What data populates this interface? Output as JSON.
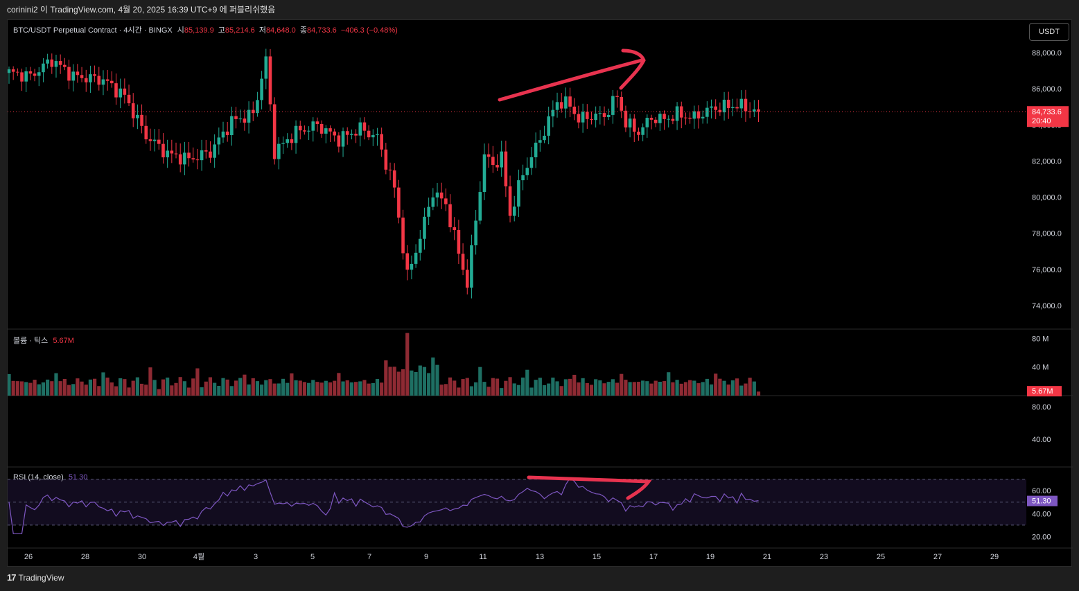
{
  "header": {
    "publish_line": "corinini2 이 TradingView.com, 4월 20, 2025 16:39 UTC+9 에 퍼블리쉬했음"
  },
  "legend": {
    "symbol": "BTC/USDT Perpetual Contract · 4시간 · BINGX",
    "o_label": "시",
    "o_value": "85,139.9",
    "h_label": "고",
    "h_value": "85,214.6",
    "l_label": "저",
    "l_value": "84,648.0",
    "c_label": "종",
    "c_value": "84,733.6",
    "change": "−406.3 (−0.48%)"
  },
  "currency_button": "USDT",
  "price_tag": {
    "price": "84,733.6",
    "countdown": "20:40"
  },
  "volume": {
    "label": "볼륨 · 틱스",
    "value": "5.67M",
    "tag": "5.67M"
  },
  "rsi": {
    "label": "RSI (14, close)",
    "value": "51.30",
    "tag": "51.30"
  },
  "footer": {
    "brand": "TradingView",
    "logo": "17"
  },
  "colors": {
    "up": "#22ab94",
    "down": "#f23645",
    "rsi": "#7e57c2",
    "annotation": "#e8334f"
  },
  "chart_data": {
    "type": "candlestick",
    "price_axis": {
      "ticks": [
        "88,000.0",
        "86,000.0",
        "84,000.0",
        "82,000.0",
        "80,000.0",
        "78,000.0",
        "76,000.0",
        "74,000.0"
      ],
      "ylim": [
        73000,
        89500
      ]
    },
    "volume_axis": {
      "ticks": [
        "80 M",
        "40 M"
      ],
      "ylim": [
        0,
        88
      ]
    },
    "oscillator_axis": {
      "ticks": [
        "80.00",
        "40.00"
      ]
    },
    "rsi_axis": {
      "ticks": [
        "60.00",
        "40.00",
        "20.00"
      ],
      "ylim": [
        10,
        80
      ],
      "bands": [
        70,
        50,
        30
      ]
    },
    "x_ticks": [
      "26",
      "28",
      "30",
      "4월",
      "3",
      "5",
      "7",
      "9",
      "11",
      "13",
      "15",
      "17",
      "19",
      "21",
      "23",
      "25",
      "27",
      "29"
    ],
    "close_anchors": [
      [
        0,
        86900
      ],
      [
        5,
        86700
      ],
      [
        10,
        87600
      ],
      [
        15,
        86700
      ],
      [
        22,
        86500
      ],
      [
        27,
        85600
      ],
      [
        32,
        83400
      ],
      [
        37,
        82400
      ],
      [
        42,
        82100
      ],
      [
        47,
        82500
      ],
      [
        52,
        84200
      ],
      [
        57,
        84600
      ],
      [
        60,
        87600
      ],
      [
        62,
        82500
      ],
      [
        67,
        83600
      ],
      [
        72,
        84000
      ],
      [
        77,
        83200
      ],
      [
        82,
        83800
      ],
      [
        86,
        83300
      ],
      [
        90,
        80500
      ],
      [
        93,
        75600
      ],
      [
        96,
        77800
      ],
      [
        99,
        80300
      ],
      [
        102,
        79600
      ],
      [
        105,
        76900
      ],
      [
        107,
        75200
      ],
      [
        111,
        82300
      ],
      [
        113,
        81800
      ],
      [
        115,
        82200
      ],
      [
        117,
        79000
      ],
      [
        120,
        81300
      ],
      [
        125,
        83700
      ],
      [
        128,
        85300
      ],
      [
        131,
        85100
      ],
      [
        133,
        84300
      ],
      [
        136,
        84500
      ],
      [
        139,
        84500
      ],
      [
        142,
        85600
      ],
      [
        144,
        84100
      ],
      [
        147,
        83600
      ],
      [
        150,
        84400
      ],
      [
        153,
        84300
      ],
      [
        156,
        84600
      ],
      [
        160,
        84400
      ],
      [
        164,
        84900
      ],
      [
        170,
        85100
      ],
      [
        175,
        84733.6
      ]
    ],
    "annotations": [
      {
        "pane": "price",
        "description": "upward arrow drawn over price highs"
      },
      {
        "pane": "rsi",
        "description": "downward line drawn over RSI highs"
      }
    ]
  }
}
